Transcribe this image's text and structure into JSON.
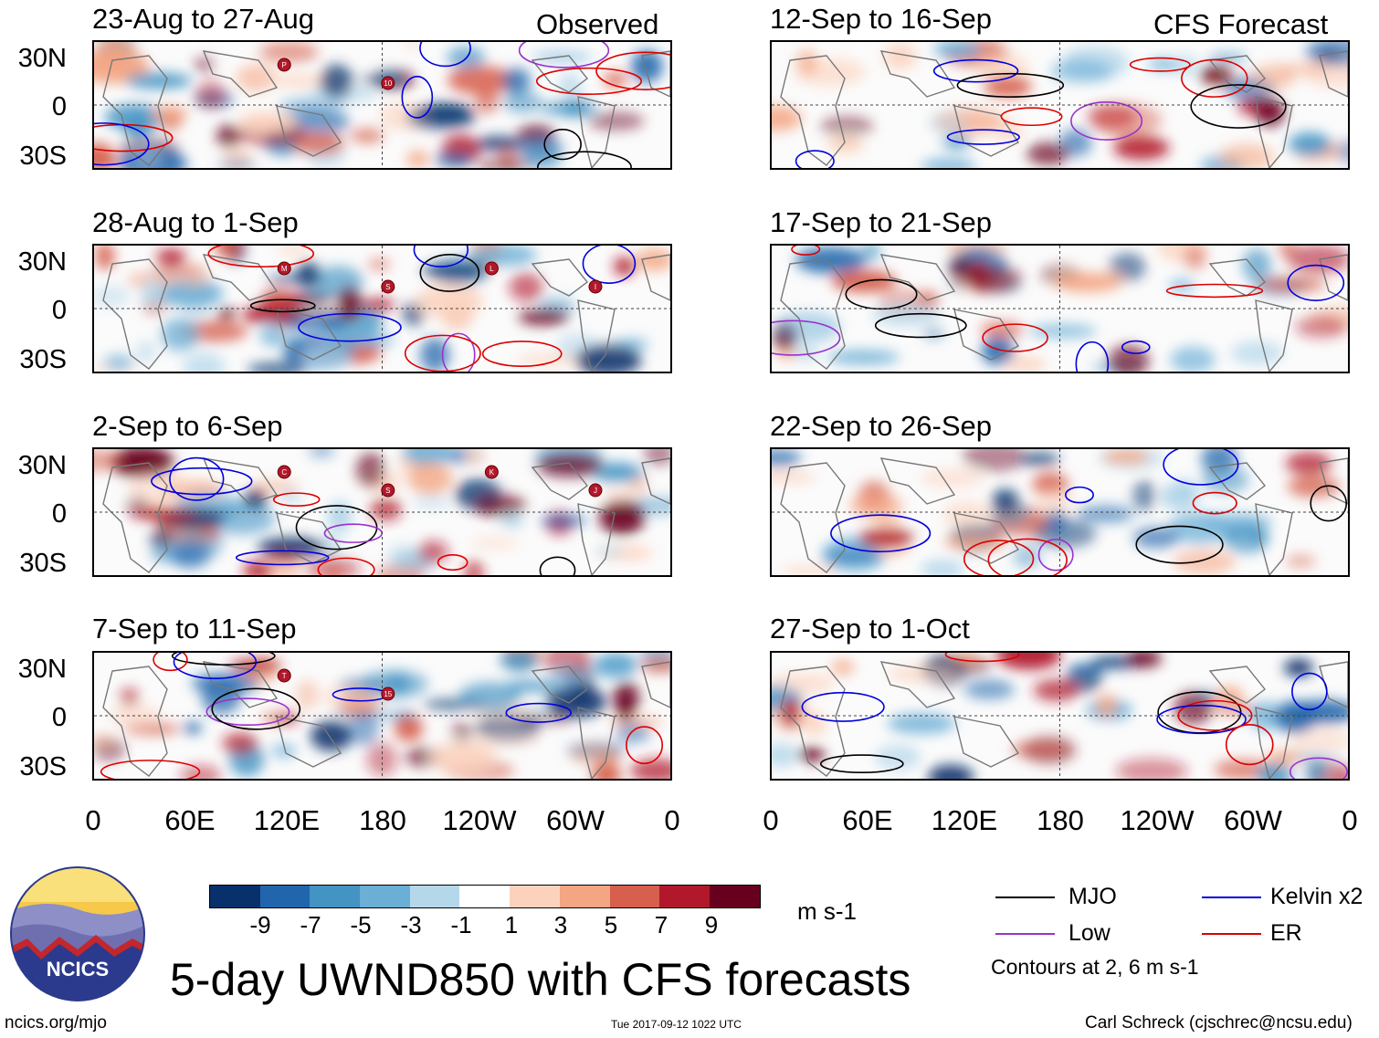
{
  "title": "5-day UWND850 with CFS forecasts",
  "observed_label": "Observed",
  "forecast_label": "CFS Forecast",
  "panels": [
    {
      "period": "23-Aug to 27-Aug",
      "column": "observed",
      "storms": [
        "P",
        "10"
      ]
    },
    {
      "period": "28-Aug to 1-Sep",
      "column": "observed",
      "storms": [
        "M",
        "S",
        "L",
        "I"
      ]
    },
    {
      "period": "2-Sep to 6-Sep",
      "column": "observed",
      "storms": [
        "C",
        "S",
        "K",
        "J"
      ]
    },
    {
      "period": "7-Sep to 11-Sep",
      "column": "observed",
      "storms": [
        "T",
        "15"
      ]
    },
    {
      "period": "12-Sep to 16-Sep",
      "column": "forecast",
      "storms": []
    },
    {
      "period": "17-Sep to 21-Sep",
      "column": "forecast",
      "storms": []
    },
    {
      "period": "22-Sep to 26-Sep",
      "column": "forecast",
      "storms": []
    },
    {
      "period": "27-Sep to 1-Oct",
      "column": "forecast",
      "storms": []
    }
  ],
  "chart_data": {
    "type": "heatmap",
    "variable": "UWND850",
    "units": "m s-1",
    "y_ticks": [
      "30N",
      "0",
      "30S"
    ],
    "x_ticks": [
      "0",
      "60E",
      "120E",
      "180",
      "120W",
      "60W",
      "0"
    ],
    "colorbar_labels": [
      "-9",
      "-7",
      "-5",
      "-3",
      "-1",
      "1",
      "3",
      "5",
      "7",
      "9"
    ],
    "colorbar_colors": [
      "#08306b",
      "#2166ac",
      "#4393c3",
      "#6baed6",
      "#b5d7ea",
      "#ffffff",
      "#fcd2bd",
      "#f4a582",
      "#d6604d",
      "#b2182b",
      "#67001f"
    ],
    "contour_note": "Contours at 2, 6 m s-1"
  },
  "legend": [
    {
      "label": "MJO",
      "color": "#000000"
    },
    {
      "label": "Kelvin x2",
      "color": "#0000dd"
    },
    {
      "label": "Low",
      "color": "#9932cc"
    },
    {
      "label": "ER",
      "color": "#dd0000"
    }
  ],
  "logo_text": "NCICS",
  "footer": {
    "url": "ncics.org/mjo",
    "timestamp": "Tue 2017-09-12 1022 UTC",
    "author": "Carl Schreck (cjschrec@ncsu.edu)"
  }
}
